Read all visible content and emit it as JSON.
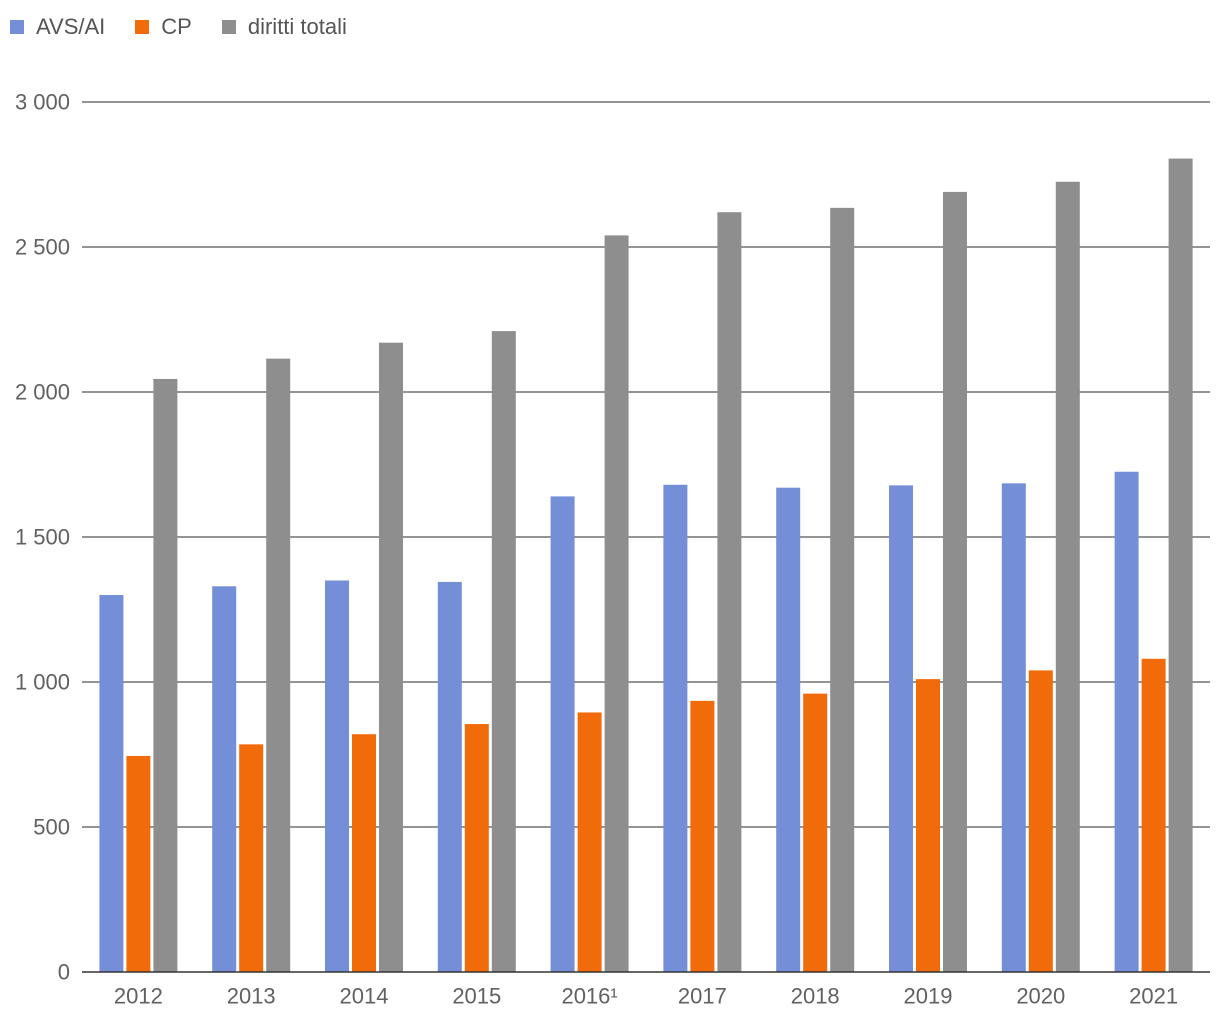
{
  "chart_data": {
    "type": "bar",
    "categories": [
      "2012",
      "2013",
      "2014",
      "2015",
      "2016¹",
      "2017",
      "2018",
      "2019",
      "2020",
      "2021"
    ],
    "series": [
      {
        "name": "AVS/AI",
        "color": "#748ED8",
        "values": [
          1300,
          1330,
          1350,
          1345,
          1640,
          1680,
          1670,
          1678,
          1685,
          1725
        ]
      },
      {
        "name": "CP",
        "color": "#F26B0A",
        "values": [
          745,
          785,
          820,
          855,
          895,
          935,
          960,
          1010,
          1040,
          1080
        ]
      },
      {
        "name": "diritti totali",
        "color": "#8E8E8E",
        "values": [
          2045,
          2115,
          2170,
          2210,
          2540,
          2620,
          2635,
          2690,
          2725,
          2805
        ]
      }
    ],
    "yticks": [
      0,
      500,
      1000,
      1500,
      2000,
      2500,
      3000
    ],
    "ytick_labels": [
      "0",
      "500",
      "1 000",
      "1 500",
      "2 000",
      "2 500",
      "3 000"
    ],
    "ylim": [
      0,
      3000
    ],
    "grid": true,
    "legend_position": "top-left"
  }
}
